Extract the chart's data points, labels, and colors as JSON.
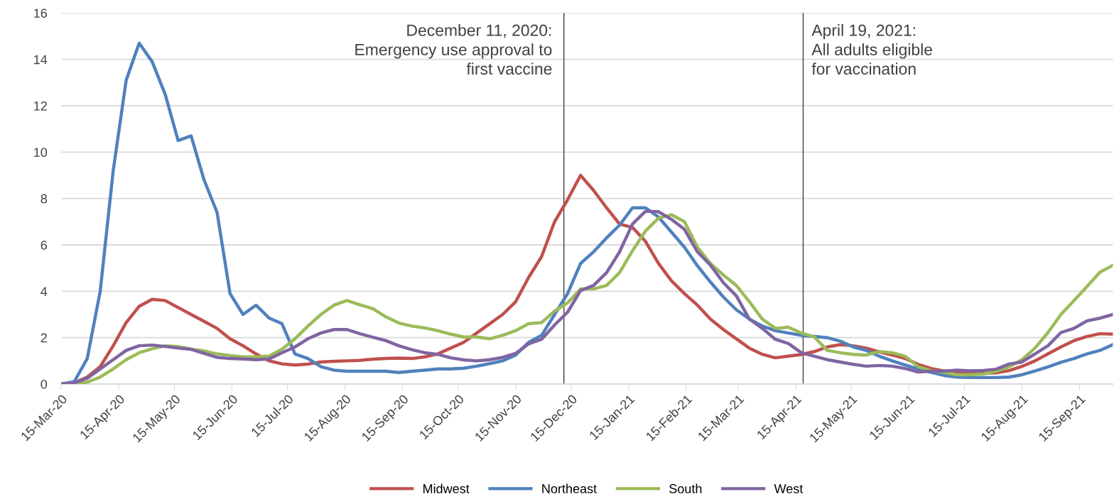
{
  "chart_data": {
    "type": "line",
    "x": [
      "2020-03-15",
      "2020-03-22",
      "2020-03-29",
      "2020-04-05",
      "2020-04-12",
      "2020-04-19",
      "2020-04-26",
      "2020-05-03",
      "2020-05-10",
      "2020-05-17",
      "2020-05-24",
      "2020-05-31",
      "2020-06-07",
      "2020-06-14",
      "2020-06-21",
      "2020-06-28",
      "2020-07-05",
      "2020-07-12",
      "2020-07-19",
      "2020-07-26",
      "2020-08-02",
      "2020-08-09",
      "2020-08-16",
      "2020-08-23",
      "2020-08-30",
      "2020-09-06",
      "2020-09-13",
      "2020-09-20",
      "2020-09-27",
      "2020-10-04",
      "2020-10-11",
      "2020-10-18",
      "2020-10-25",
      "2020-11-01",
      "2020-11-08",
      "2020-11-15",
      "2020-11-22",
      "2020-11-29",
      "2020-12-06",
      "2020-12-13",
      "2020-12-20",
      "2020-12-27",
      "2021-01-03",
      "2021-01-10",
      "2021-01-17",
      "2021-01-24",
      "2021-01-31",
      "2021-02-07",
      "2021-02-14",
      "2021-02-21",
      "2021-02-28",
      "2021-03-07",
      "2021-03-14",
      "2021-03-21",
      "2021-03-28",
      "2021-04-04",
      "2021-04-11",
      "2021-04-18",
      "2021-04-25",
      "2021-05-02",
      "2021-05-09",
      "2021-05-16",
      "2021-05-23",
      "2021-05-30",
      "2021-06-06",
      "2021-06-13",
      "2021-06-20",
      "2021-06-27",
      "2021-07-04",
      "2021-07-11",
      "2021-07-18",
      "2021-07-25",
      "2021-08-01",
      "2021-08-08",
      "2021-08-15",
      "2021-08-22",
      "2021-08-29",
      "2021-09-05",
      "2021-09-12",
      "2021-09-19",
      "2021-09-26",
      "2021-10-03"
    ],
    "series": [
      {
        "name": "Midwest",
        "color": "#c0504d",
        "values": [
          0,
          0.05,
          0.3,
          0.75,
          1.65,
          2.65,
          3.35,
          3.65,
          3.6,
          3.3,
          3.0,
          2.7,
          2.4,
          1.95,
          1.65,
          1.3,
          1.0,
          0.87,
          0.82,
          0.86,
          0.95,
          0.98,
          1.0,
          1.02,
          1.07,
          1.1,
          1.12,
          1.1,
          1.17,
          1.3,
          1.55,
          1.8,
          2.2,
          2.6,
          3.0,
          3.55,
          4.6,
          5.5,
          7.0,
          7.95,
          9.0,
          8.35,
          7.6,
          6.9,
          6.75,
          6.15,
          5.2,
          4.45,
          3.9,
          3.4,
          2.8,
          2.35,
          1.95,
          1.55,
          1.28,
          1.13,
          1.2,
          1.27,
          1.4,
          1.6,
          1.7,
          1.65,
          1.55,
          1.38,
          1.25,
          1.1,
          0.85,
          0.67,
          0.56,
          0.5,
          0.47,
          0.47,
          0.48,
          0.58,
          0.76,
          1.0,
          1.3,
          1.6,
          1.87,
          2.05,
          2.17,
          2.15
        ]
      },
      {
        "name": "Northeast",
        "color": "#4f81bd",
        "values": [
          0,
          0.1,
          1.1,
          4.0,
          9.2,
          13.1,
          14.7,
          13.9,
          12.5,
          10.5,
          10.7,
          8.8,
          7.4,
          3.9,
          3.0,
          3.4,
          2.85,
          2.6,
          1.3,
          1.1,
          0.75,
          0.6,
          0.55,
          0.55,
          0.55,
          0.55,
          0.5,
          0.55,
          0.6,
          0.65,
          0.65,
          0.68,
          0.77,
          0.88,
          1.0,
          1.25,
          1.8,
          2.1,
          3.0,
          3.9,
          5.2,
          5.7,
          6.3,
          6.85,
          7.6,
          7.6,
          7.2,
          6.55,
          5.9,
          5.1,
          4.4,
          3.75,
          3.2,
          2.8,
          2.5,
          2.3,
          2.2,
          2.1,
          2.05,
          2.0,
          1.85,
          1.6,
          1.45,
          1.2,
          1.0,
          0.82,
          0.65,
          0.5,
          0.37,
          0.3,
          0.28,
          0.28,
          0.28,
          0.3,
          0.4,
          0.56,
          0.74,
          0.94,
          1.1,
          1.3,
          1.45,
          1.7
        ]
      },
      {
        "name": "South",
        "color": "#9bbb59",
        "values": [
          0,
          0,
          0.08,
          0.3,
          0.65,
          1.05,
          1.35,
          1.52,
          1.65,
          1.62,
          1.5,
          1.43,
          1.3,
          1.23,
          1.17,
          1.17,
          1.2,
          1.5,
          1.95,
          2.5,
          3.0,
          3.4,
          3.6,
          3.42,
          3.25,
          2.9,
          2.63,
          2.5,
          2.42,
          2.3,
          2.15,
          2.03,
          2.03,
          1.95,
          2.1,
          2.3,
          2.6,
          2.65,
          3.15,
          3.5,
          4.1,
          4.1,
          4.25,
          4.8,
          5.75,
          6.6,
          7.15,
          7.3,
          7.0,
          5.9,
          5.2,
          4.7,
          4.25,
          3.55,
          2.8,
          2.4,
          2.45,
          2.2,
          2.03,
          1.45,
          1.35,
          1.28,
          1.25,
          1.4,
          1.35,
          1.2,
          0.75,
          0.58,
          0.5,
          0.4,
          0.4,
          0.43,
          0.55,
          0.74,
          1.05,
          1.55,
          2.22,
          3.0,
          3.6,
          4.2,
          4.82,
          5.12
        ]
      },
      {
        "name": "West",
        "color": "#8064a2",
        "values": [
          0,
          0.05,
          0.25,
          0.65,
          1.05,
          1.45,
          1.65,
          1.68,
          1.62,
          1.55,
          1.5,
          1.32,
          1.15,
          1.1,
          1.08,
          1.05,
          1.08,
          1.35,
          1.6,
          1.95,
          2.2,
          2.35,
          2.35,
          2.17,
          2.02,
          1.87,
          1.65,
          1.48,
          1.35,
          1.28,
          1.13,
          1.04,
          1.0,
          1.05,
          1.15,
          1.32,
          1.73,
          1.93,
          2.55,
          3.1,
          4.03,
          4.25,
          4.8,
          5.7,
          6.9,
          7.45,
          7.43,
          7.1,
          6.67,
          5.7,
          5.13,
          4.37,
          3.8,
          2.8,
          2.4,
          1.93,
          1.75,
          1.35,
          1.2,
          1.05,
          0.95,
          0.85,
          0.77,
          0.8,
          0.77,
          0.67,
          0.52,
          0.55,
          0.56,
          0.6,
          0.57,
          0.58,
          0.64,
          0.86,
          0.95,
          1.3,
          1.65,
          2.22,
          2.4,
          2.72,
          2.84,
          3.0
        ]
      }
    ],
    "xlim": [
      "2020-03-15",
      "2021-10-03"
    ],
    "xticks": [
      {
        "value": "2020-03-15",
        "label": "15-Mar-20"
      },
      {
        "value": "2020-04-15",
        "label": "15-Apr-20"
      },
      {
        "value": "2020-05-15",
        "label": "15-May-20"
      },
      {
        "value": "2020-06-15",
        "label": "15-Jun-20"
      },
      {
        "value": "2020-07-15",
        "label": "15-Jul-20"
      },
      {
        "value": "2020-08-15",
        "label": "15-Aug-20"
      },
      {
        "value": "2020-09-15",
        "label": "15-Sep-20"
      },
      {
        "value": "2020-10-15",
        "label": "15-Oct-20"
      },
      {
        "value": "2020-11-15",
        "label": "15-Nov-20"
      },
      {
        "value": "2020-12-15",
        "label": "15-Dec-20"
      },
      {
        "value": "2021-01-15",
        "label": "15-Jan-21"
      },
      {
        "value": "2021-02-15",
        "label": "15-Feb-21"
      },
      {
        "value": "2021-03-15",
        "label": "15-Mar-21"
      },
      {
        "value": "2021-04-15",
        "label": "15-Apr-21"
      },
      {
        "value": "2021-05-15",
        "label": "15-May-21"
      },
      {
        "value": "2021-06-15",
        "label": "15-Jun-21"
      },
      {
        "value": "2021-07-15",
        "label": "15-Jul-21"
      },
      {
        "value": "2021-08-15",
        "label": "15-Aug-21"
      },
      {
        "value": "2021-09-15",
        "label": "15-Sep-21"
      }
    ],
    "ylim": [
      0,
      16
    ],
    "yticks": [
      0,
      2,
      4,
      6,
      8,
      10,
      12,
      14,
      16
    ],
    "ref_lines": [
      {
        "axis": "x",
        "value": "2020-12-11",
        "label": "December 11, 2020:\nEmergency use approval to\nfirst vaccine",
        "color": "#404040"
      },
      {
        "axis": "x",
        "value": "2021-04-19",
        "label": "April 19, 2021:\nAll adults eligible\nfor vaccination",
        "color": "#404040"
      }
    ],
    "grid": "y",
    "legend": "bottom",
    "marker": "none",
    "line_style": "solid"
  }
}
